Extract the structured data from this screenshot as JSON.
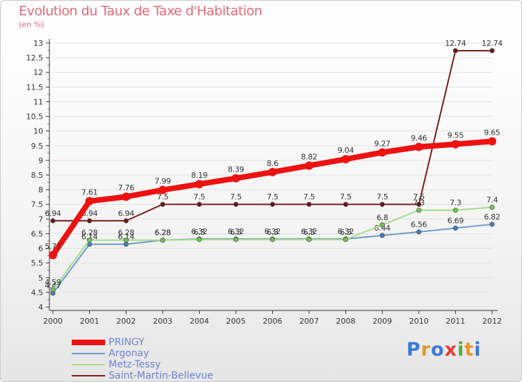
{
  "title": "Evolution du Taux de Taxe d'Habitation",
  "unit_label": "(en %)",
  "brand": {
    "text": "Proxiti",
    "letter_colors": [
      "#3a78d6",
      "#e8962a",
      "#3a78d6",
      "#e83a3a",
      "#4eae3c",
      "#e8962a",
      "#3a78d6"
    ]
  },
  "colors": {
    "title": "#e06a75",
    "axis": "#333333",
    "grid": "#e2e2e2",
    "value_label": "#333333",
    "legend_text": "#6e82d4"
  },
  "chart_data": {
    "type": "line",
    "title": "Evolution du Taux de Taxe d'Habitation",
    "ylabel": "(en %)",
    "xlabel": "",
    "x": [
      "2000",
      "2001",
      "2002",
      "2003",
      "2004",
      "2005",
      "2006",
      "2007",
      "2008",
      "2009",
      "2010",
      "2011",
      "2012"
    ],
    "ylim": [
      4,
      13
    ],
    "yticks": [
      "4",
      "4.5",
      "5",
      "5.5",
      "6",
      "6.5",
      "7",
      "7.5",
      "8",
      "8.5",
      "9",
      "9.5",
      "10",
      "10.5",
      "11",
      "11.5",
      "12",
      "12.5",
      "13"
    ],
    "grid": "horizontal",
    "legend_position": "bottom-left",
    "series": [
      {
        "name": "Saint-Martin-Bellevue",
        "color": "#7a1c1c",
        "marker_color": "#6e1212",
        "values": [
          6.94,
          6.94,
          6.94,
          7.5,
          7.5,
          7.5,
          7.5,
          7.5,
          7.5,
          7.5,
          7.5,
          12.74,
          12.74
        ],
        "labels": [
          "6.94",
          "6.94",
          "6.94",
          "7.5",
          "7.5",
          "7.5",
          "7.5",
          "7.5",
          "7.5",
          "7.5",
          "7.5",
          "12.74",
          "12.74"
        ]
      },
      {
        "name": "Argonay",
        "color": "#6b9acd",
        "marker_color": "#3f7fc4",
        "values": [
          4.47,
          6.14,
          6.14,
          6.28,
          6.32,
          6.32,
          6.32,
          6.32,
          6.32,
          6.44,
          6.56,
          6.69,
          6.82
        ],
        "labels": [
          "4.47",
          "6.14",
          "6.14",
          "6.28",
          "6.32",
          "6.32",
          "6.32",
          "6.32",
          "6.32",
          "6.44",
          "6.56",
          "6.69",
          "6.82"
        ]
      },
      {
        "name": "Metz-Tessy",
        "color": "#a3de87",
        "marker_color": "#6ec94a",
        "values": [
          4.59,
          6.28,
          6.28,
          6.28,
          6.3,
          6.3,
          6.3,
          6.3,
          6.3,
          6.8,
          7.3,
          7.3,
          7.4
        ],
        "labels": [
          "4.59",
          "6.28",
          "6.28",
          "6.28",
          "6.3",
          "6.3",
          "6.3",
          "6.3",
          "6.3",
          "6.8",
          "7.3",
          "7.3",
          "7.4"
        ]
      },
      {
        "name": "PRINGY",
        "color": "#ee1111",
        "marker_color": "#ee1111",
        "values": [
          5.77,
          7.61,
          7.76,
          7.99,
          8.19,
          8.39,
          8.6,
          8.82,
          9.04,
          9.27,
          9.46,
          9.55,
          9.65
        ],
        "labels": [
          "5.77",
          "7.61",
          "7.76",
          "7.99",
          "8.19",
          "8.39",
          "8.6",
          "8.82",
          "9.04",
          "9.27",
          "9.46",
          "9.55",
          "9.65"
        ]
      }
    ],
    "legend_order": [
      "PRINGY",
      "Argonay",
      "Metz-Tessy",
      "Saint-Martin-Bellevue"
    ]
  }
}
